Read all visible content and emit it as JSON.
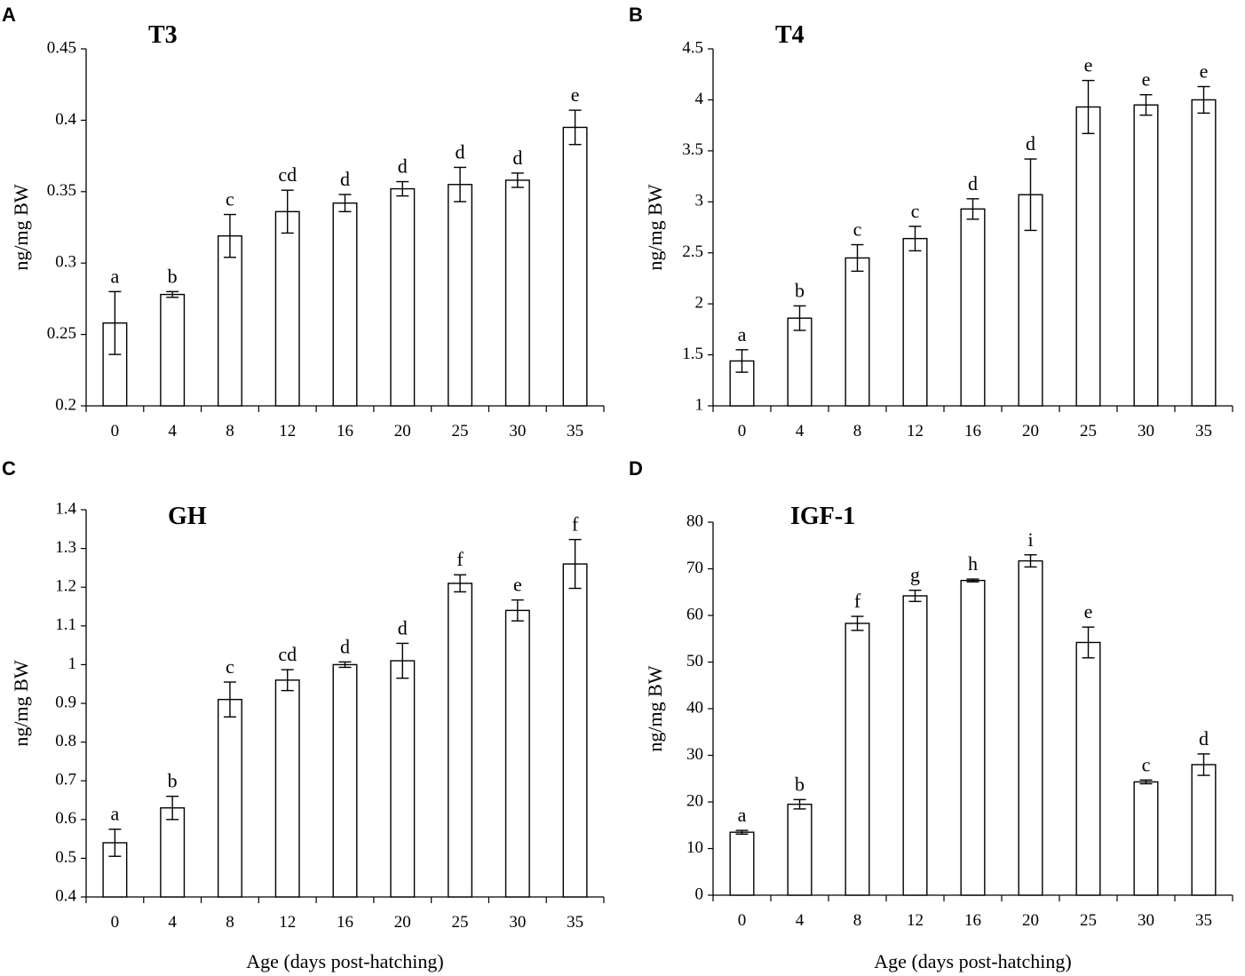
{
  "chart_data": [
    {
      "panel": "A",
      "type": "bar",
      "title": "T3",
      "ylabel": "ng/mg BW",
      "xlabel": "",
      "categories": [
        "0",
        "4",
        "8",
        "12",
        "16",
        "20",
        "25",
        "30",
        "35"
      ],
      "values": [
        0.258,
        0.278,
        0.319,
        0.336,
        0.342,
        0.352,
        0.355,
        0.358,
        0.395
      ],
      "errors": [
        0.022,
        0.002,
        0.015,
        0.015,
        0.006,
        0.005,
        0.012,
        0.005,
        0.012
      ],
      "labels": [
        "a",
        "b",
        "c",
        "cd",
        "d",
        "d",
        "d",
        "d",
        "e"
      ],
      "ylim": [
        0.2,
        0.45
      ],
      "yticks": [
        "0.2",
        "0.25",
        "0.3",
        "0.35",
        "0.4",
        "0.45"
      ],
      "ystep": 0.05
    },
    {
      "panel": "B",
      "type": "bar",
      "title": "T4",
      "ylabel": "ng/mg BW",
      "xlabel": "",
      "categories": [
        "0",
        "4",
        "8",
        "12",
        "16",
        "20",
        "25",
        "30",
        "35"
      ],
      "values": [
        1.44,
        1.86,
        2.45,
        2.64,
        2.93,
        3.07,
        3.93,
        3.95,
        4.0
      ],
      "errors": [
        0.11,
        0.12,
        0.13,
        0.12,
        0.1,
        0.35,
        0.26,
        0.1,
        0.13
      ],
      "labels": [
        "a",
        "b",
        "c",
        "c",
        "d",
        "d",
        "e",
        "e",
        "e"
      ],
      "ylim": [
        1,
        4.5
      ],
      "yticks": [
        "1",
        "1.5",
        "2",
        "2.5",
        "3",
        "3.5",
        "4",
        "4.5"
      ],
      "ystep": 0.5
    },
    {
      "panel": "C",
      "type": "bar",
      "title": "GH",
      "ylabel": "ng/mg BW",
      "xlabel": "Age (days post-hatching)",
      "categories": [
        "0",
        "4",
        "8",
        "12",
        "16",
        "20",
        "25",
        "30",
        "35"
      ],
      "values": [
        0.54,
        0.63,
        0.91,
        0.96,
        1.0,
        1.01,
        1.21,
        1.14,
        1.26
      ],
      "errors": [
        0.035,
        0.03,
        0.045,
        0.027,
        0.007,
        0.045,
        0.022,
        0.027,
        0.063
      ],
      "labels": [
        "a",
        "b",
        "c",
        "cd",
        "d",
        "d",
        "f",
        "e",
        "f"
      ],
      "ylim": [
        0.4,
        1.4
      ],
      "yticks": [
        "0.4",
        "0.5",
        "0.6",
        "0.7",
        "0.8",
        "0.9",
        "1",
        "1.1",
        "1.2",
        "1.3",
        "1.4"
      ],
      "ystep": 0.1
    },
    {
      "panel": "D",
      "type": "bar",
      "title": "IGF-1",
      "ylabel": "ng/mg BW",
      "xlabel": "Age (days post-hatching)",
      "categories": [
        "0",
        "4",
        "8",
        "12",
        "16",
        "20",
        "25",
        "30",
        "35"
      ],
      "values": [
        13.5,
        19.5,
        58.3,
        64.2,
        67.5,
        71.7,
        54.2,
        24.3,
        28.0
      ],
      "errors": [
        0.4,
        1.0,
        1.5,
        1.2,
        0.3,
        1.3,
        3.3,
        0.4,
        2.3
      ],
      "labels": [
        "a",
        "b",
        "f",
        "g",
        "h",
        "i",
        "e",
        "c",
        "d"
      ],
      "ylim": [
        0,
        80
      ],
      "yticks": [
        "0",
        "10",
        "20",
        "30",
        "40",
        "50",
        "60",
        "70",
        "80"
      ],
      "ystep": 10
    }
  ]
}
